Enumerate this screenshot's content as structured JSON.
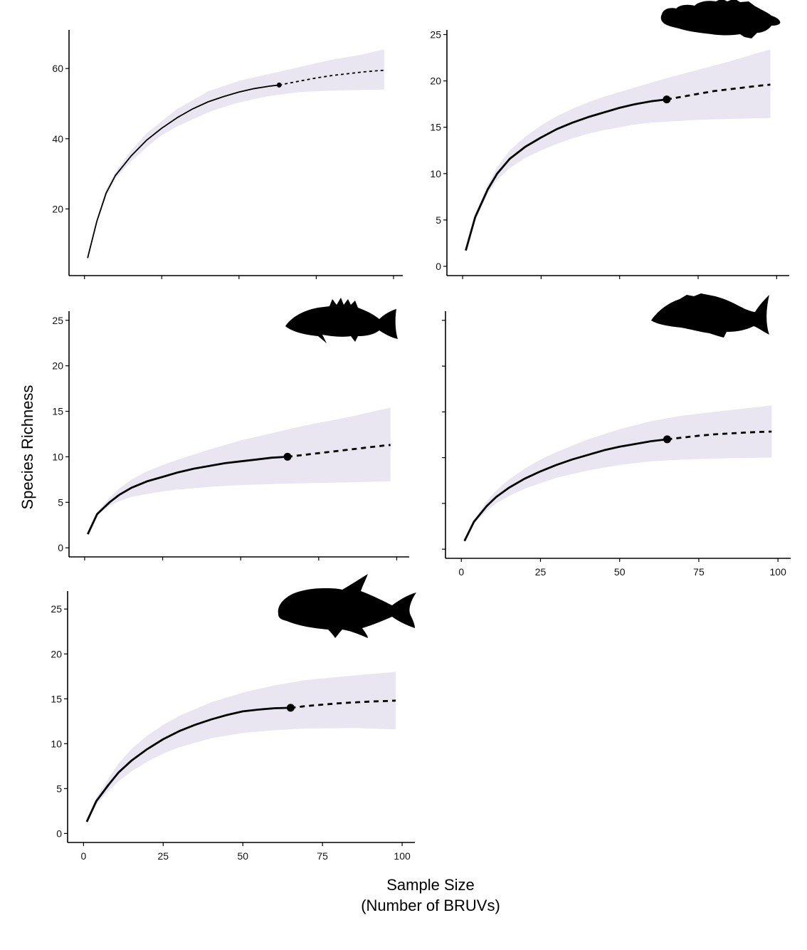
{
  "figure": {
    "ylabel": "Species Richness",
    "xlabel_line1": "Sample Size",
    "xlabel_line2": "(Number of BRUVs)",
    "colors": {
      "ribbon": "#e9e6f1",
      "line": "#000000"
    }
  },
  "chart_data": [
    {
      "type": "line",
      "panel": "all-species",
      "icon": "none",
      "xlim": [
        -5,
        103
      ],
      "ylim": [
        1,
        71
      ],
      "x_ticks": [
        0,
        25,
        50,
        75,
        100
      ],
      "show_x_tick_labels": false,
      "y_ticks": [
        20,
        40,
        60
      ],
      "observed": {
        "x": [
          1,
          4,
          7,
          10,
          15,
          20,
          25,
          30,
          35,
          40,
          45,
          50,
          55,
          60,
          63
        ],
        "y": [
          6,
          16.5,
          24.5,
          29.5,
          35,
          39.5,
          43,
          46,
          48.5,
          50.5,
          52,
          53.3,
          54.3,
          55,
          55.3
        ]
      },
      "reference_point": {
        "x": 63,
        "y": 55.3
      },
      "extrapolated": {
        "x": [
          63,
          70,
          75,
          80,
          85,
          90,
          95,
          97
        ],
        "y": [
          55.3,
          56.5,
          57.3,
          58,
          58.5,
          59,
          59.4,
          59.5
        ]
      },
      "ci_lower": [
        {
          "x": 1,
          "y": 5.8
        },
        {
          "x": 4,
          "y": 15.8
        },
        {
          "x": 7,
          "y": 23.5
        },
        {
          "x": 10,
          "y": 28.5
        },
        {
          "x": 15,
          "y": 33.5
        },
        {
          "x": 20,
          "y": 37.5
        },
        {
          "x": 25,
          "y": 41
        },
        {
          "x": 30,
          "y": 43.5
        },
        {
          "x": 35,
          "y": 45.5
        },
        {
          "x": 40,
          "y": 47.5
        },
        {
          "x": 45,
          "y": 49
        },
        {
          "x": 50,
          "y": 50.3
        },
        {
          "x": 55,
          "y": 51.3
        },
        {
          "x": 60,
          "y": 52.2
        },
        {
          "x": 65,
          "y": 52.8
        },
        {
          "x": 70,
          "y": 53.3
        },
        {
          "x": 80,
          "y": 53.7
        },
        {
          "x": 90,
          "y": 53.9
        },
        {
          "x": 97,
          "y": 54
        }
      ],
      "ci_upper": [
        {
          "x": 1,
          "y": 6.2
        },
        {
          "x": 4,
          "y": 17.2
        },
        {
          "x": 7,
          "y": 25.5
        },
        {
          "x": 10,
          "y": 30.5
        },
        {
          "x": 15,
          "y": 36.5
        },
        {
          "x": 20,
          "y": 41.5
        },
        {
          "x": 25,
          "y": 45
        },
        {
          "x": 30,
          "y": 48.5
        },
        {
          "x": 35,
          "y": 51
        },
        {
          "x": 40,
          "y": 53.5
        },
        {
          "x": 45,
          "y": 55
        },
        {
          "x": 50,
          "y": 56.5
        },
        {
          "x": 55,
          "y": 57.5
        },
        {
          "x": 60,
          "y": 58.5
        },
        {
          "x": 65,
          "y": 59.5
        },
        {
          "x": 70,
          "y": 60.5
        },
        {
          "x": 80,
          "y": 62.5
        },
        {
          "x": 90,
          "y": 64
        },
        {
          "x": 97,
          "y": 65.5
        }
      ]
    },
    {
      "type": "line",
      "panel": "grouper",
      "icon": "grouper",
      "xlim": [
        -5,
        104
      ],
      "ylim": [
        -1,
        25.5
      ],
      "x_ticks": [
        0,
        25,
        50,
        75,
        100
      ],
      "show_x_tick_labels": false,
      "y_ticks": [
        0,
        5,
        10,
        15,
        20,
        25
      ],
      "observed": {
        "x": [
          1,
          4,
          8,
          11,
          15,
          20,
          25,
          30,
          35,
          40,
          45,
          50,
          55,
          60,
          65
        ],
        "y": [
          1.7,
          5.3,
          8.3,
          10,
          11.6,
          12.9,
          13.9,
          14.8,
          15.5,
          16.1,
          16.6,
          17.1,
          17.5,
          17.8,
          18
        ]
      },
      "reference_point": {
        "x": 65,
        "y": 18
      },
      "extrapolated": {
        "x": [
          65,
          70,
          75,
          80,
          85,
          90,
          95,
          98
        ],
        "y": [
          18,
          18.3,
          18.6,
          18.9,
          19.1,
          19.3,
          19.5,
          19.6
        ]
      },
      "ci_lower": [
        {
          "x": 1,
          "y": 1.6
        },
        {
          "x": 4,
          "y": 5
        },
        {
          "x": 8,
          "y": 7.8
        },
        {
          "x": 11,
          "y": 9.3
        },
        {
          "x": 15,
          "y": 10.6
        },
        {
          "x": 20,
          "y": 11.7
        },
        {
          "x": 25,
          "y": 12.5
        },
        {
          "x": 30,
          "y": 13.2
        },
        {
          "x": 35,
          "y": 13.8
        },
        {
          "x": 40,
          "y": 14.3
        },
        {
          "x": 45,
          "y": 14.7
        },
        {
          "x": 50,
          "y": 15
        },
        {
          "x": 55,
          "y": 15.3
        },
        {
          "x": 60,
          "y": 15.5
        },
        {
          "x": 65,
          "y": 15.6
        },
        {
          "x": 75,
          "y": 15.8
        },
        {
          "x": 85,
          "y": 15.9
        },
        {
          "x": 98,
          "y": 16
        }
      ],
      "ci_upper": [
        {
          "x": 1,
          "y": 1.8
        },
        {
          "x": 4,
          "y": 5.6
        },
        {
          "x": 8,
          "y": 8.8
        },
        {
          "x": 11,
          "y": 10.7
        },
        {
          "x": 15,
          "y": 12.5
        },
        {
          "x": 20,
          "y": 14
        },
        {
          "x": 25,
          "y": 15.2
        },
        {
          "x": 30,
          "y": 16.2
        },
        {
          "x": 35,
          "y": 17
        },
        {
          "x": 40,
          "y": 17.7
        },
        {
          "x": 45,
          "y": 18.3
        },
        {
          "x": 50,
          "y": 18.8
        },
        {
          "x": 55,
          "y": 19.3
        },
        {
          "x": 60,
          "y": 19.8
        },
        {
          "x": 65,
          "y": 20.3
        },
        {
          "x": 75,
          "y": 21.2
        },
        {
          "x": 85,
          "y": 22.1
        },
        {
          "x": 98,
          "y": 23.4
        }
      ]
    },
    {
      "type": "line",
      "panel": "snapper",
      "icon": "snapper",
      "xlim": [
        -5,
        104
      ],
      "ylim": [
        -1,
        26
      ],
      "x_ticks": [
        0,
        25,
        50,
        75,
        100
      ],
      "show_x_tick_labels": false,
      "y_ticks": [
        0,
        5,
        10,
        15,
        20,
        25
      ],
      "observed": {
        "x": [
          1,
          4,
          8,
          11,
          15,
          20,
          25,
          30,
          35,
          40,
          45,
          50,
          55,
          60,
          65
        ],
        "y": [
          1.5,
          3.7,
          5,
          5.8,
          6.6,
          7.3,
          7.8,
          8.3,
          8.7,
          9,
          9.3,
          9.5,
          9.7,
          9.9,
          10
        ]
      },
      "reference_point": {
        "x": 65,
        "y": 10
      },
      "extrapolated": {
        "x": [
          65,
          70,
          75,
          80,
          85,
          90,
          95,
          98
        ],
        "y": [
          10,
          10.2,
          10.4,
          10.6,
          10.8,
          11,
          11.2,
          11.3
        ]
      },
      "ci_lower": [
        {
          "x": 1,
          "y": 1.4
        },
        {
          "x": 4,
          "y": 3.6
        },
        {
          "x": 8,
          "y": 4.6
        },
        {
          "x": 11,
          "y": 5.1
        },
        {
          "x": 15,
          "y": 5.6
        },
        {
          "x": 20,
          "y": 5.9
        },
        {
          "x": 25,
          "y": 6.2
        },
        {
          "x": 30,
          "y": 6.4
        },
        {
          "x": 40,
          "y": 6.7
        },
        {
          "x": 50,
          "y": 6.9
        },
        {
          "x": 60,
          "y": 7
        },
        {
          "x": 70,
          "y": 7.1
        },
        {
          "x": 85,
          "y": 7.2
        },
        {
          "x": 98,
          "y": 7.3
        }
      ],
      "ci_upper": [
        {
          "x": 1,
          "y": 1.6
        },
        {
          "x": 4,
          "y": 3.9
        },
        {
          "x": 8,
          "y": 5.5
        },
        {
          "x": 11,
          "y": 6.5
        },
        {
          "x": 15,
          "y": 7.5
        },
        {
          "x": 20,
          "y": 8.4
        },
        {
          "x": 25,
          "y": 9.1
        },
        {
          "x": 30,
          "y": 9.7
        },
        {
          "x": 40,
          "y": 10.8
        },
        {
          "x": 50,
          "y": 11.8
        },
        {
          "x": 60,
          "y": 12.6
        },
        {
          "x": 70,
          "y": 13.4
        },
        {
          "x": 85,
          "y": 14.4
        },
        {
          "x": 98,
          "y": 15.4
        }
      ]
    },
    {
      "type": "line",
      "panel": "emperor",
      "icon": "emperor",
      "xlim": [
        -5,
        104
      ],
      "ylim": [
        -1,
        26
      ],
      "x_ticks": [
        0,
        25,
        50,
        75,
        100
      ],
      "show_x_tick_labels": true,
      "show_y_tick_labels": false,
      "y_ticks": [
        0,
        5,
        10,
        15,
        20,
        25
      ],
      "observed": {
        "x": [
          1,
          4,
          8,
          11,
          15,
          20,
          25,
          30,
          35,
          40,
          45,
          50,
          55,
          60,
          65
        ],
        "y": [
          0.9,
          3,
          4.7,
          5.7,
          6.7,
          7.7,
          8.5,
          9.2,
          9.8,
          10.3,
          10.8,
          11.2,
          11.5,
          11.8,
          12
        ]
      },
      "reference_point": {
        "x": 65,
        "y": 12
      },
      "extrapolated": {
        "x": [
          65,
          70,
          75,
          80,
          85,
          90,
          95,
          98
        ],
        "y": [
          12,
          12.2,
          12.4,
          12.55,
          12.65,
          12.75,
          12.82,
          12.85
        ]
      },
      "ci_lower": [
        {
          "x": 1,
          "y": 0.8
        },
        {
          "x": 4,
          "y": 2.8
        },
        {
          "x": 8,
          "y": 4.2
        },
        {
          "x": 11,
          "y": 5
        },
        {
          "x": 15,
          "y": 5.8
        },
        {
          "x": 20,
          "y": 6.6
        },
        {
          "x": 25,
          "y": 7.2
        },
        {
          "x": 30,
          "y": 7.8
        },
        {
          "x": 40,
          "y": 8.6
        },
        {
          "x": 50,
          "y": 9.2
        },
        {
          "x": 60,
          "y": 9.6
        },
        {
          "x": 70,
          "y": 9.8
        },
        {
          "x": 85,
          "y": 9.95
        },
        {
          "x": 98,
          "y": 10
        }
      ],
      "ci_upper": [
        {
          "x": 1,
          "y": 1
        },
        {
          "x": 4,
          "y": 3.2
        },
        {
          "x": 8,
          "y": 5.2
        },
        {
          "x": 11,
          "y": 6.4
        },
        {
          "x": 15,
          "y": 7.6
        },
        {
          "x": 20,
          "y": 8.8
        },
        {
          "x": 25,
          "y": 9.8
        },
        {
          "x": 30,
          "y": 10.6
        },
        {
          "x": 40,
          "y": 12
        },
        {
          "x": 50,
          "y": 13.1
        },
        {
          "x": 60,
          "y": 14
        },
        {
          "x": 70,
          "y": 14.6
        },
        {
          "x": 85,
          "y": 15.2
        },
        {
          "x": 98,
          "y": 15.7
        }
      ]
    },
    {
      "type": "line",
      "panel": "trevally",
      "icon": "trevally",
      "xlim": [
        -5,
        104
      ],
      "ylim": [
        -1,
        27
      ],
      "x_ticks": [
        0,
        25,
        50,
        75,
        100
      ],
      "show_x_tick_labels": true,
      "y_ticks": [
        0,
        5,
        10,
        15,
        20,
        25
      ],
      "observed": {
        "x": [
          1,
          4,
          8,
          11,
          15,
          20,
          25,
          30,
          35,
          40,
          45,
          50,
          55,
          60,
          65
        ],
        "y": [
          1.3,
          3.6,
          5.5,
          6.8,
          8.1,
          9.4,
          10.5,
          11.4,
          12.1,
          12.7,
          13.2,
          13.6,
          13.8,
          13.95,
          14
        ]
      },
      "reference_point": {
        "x": 65,
        "y": 14
      },
      "extrapolated": {
        "x": [
          65,
          70,
          75,
          80,
          85,
          90,
          95,
          98
        ],
        "y": [
          14,
          14.2,
          14.35,
          14.5,
          14.6,
          14.7,
          14.75,
          14.8
        ]
      },
      "ci_lower": [
        {
          "x": 1,
          "y": 1.2
        },
        {
          "x": 4,
          "y": 3.2
        },
        {
          "x": 8,
          "y": 4.8
        },
        {
          "x": 11,
          "y": 5.8
        },
        {
          "x": 15,
          "y": 6.9
        },
        {
          "x": 20,
          "y": 8
        },
        {
          "x": 25,
          "y": 8.9
        },
        {
          "x": 30,
          "y": 9.6
        },
        {
          "x": 40,
          "y": 10.6
        },
        {
          "x": 50,
          "y": 11.2
        },
        {
          "x": 60,
          "y": 11.5
        },
        {
          "x": 70,
          "y": 11.7
        },
        {
          "x": 85,
          "y": 11.75
        },
        {
          "x": 98,
          "y": 11.6
        }
      ],
      "ci_upper": [
        {
          "x": 1,
          "y": 1.4
        },
        {
          "x": 4,
          "y": 4
        },
        {
          "x": 8,
          "y": 6.2
        },
        {
          "x": 11,
          "y": 7.8
        },
        {
          "x": 15,
          "y": 9.4
        },
        {
          "x": 20,
          "y": 10.9
        },
        {
          "x": 25,
          "y": 12.1
        },
        {
          "x": 30,
          "y": 13.1
        },
        {
          "x": 40,
          "y": 14.6
        },
        {
          "x": 50,
          "y": 15.7
        },
        {
          "x": 60,
          "y": 16.5
        },
        {
          "x": 70,
          "y": 17.1
        },
        {
          "x": 85,
          "y": 17.6
        },
        {
          "x": 98,
          "y": 18
        }
      ]
    }
  ]
}
